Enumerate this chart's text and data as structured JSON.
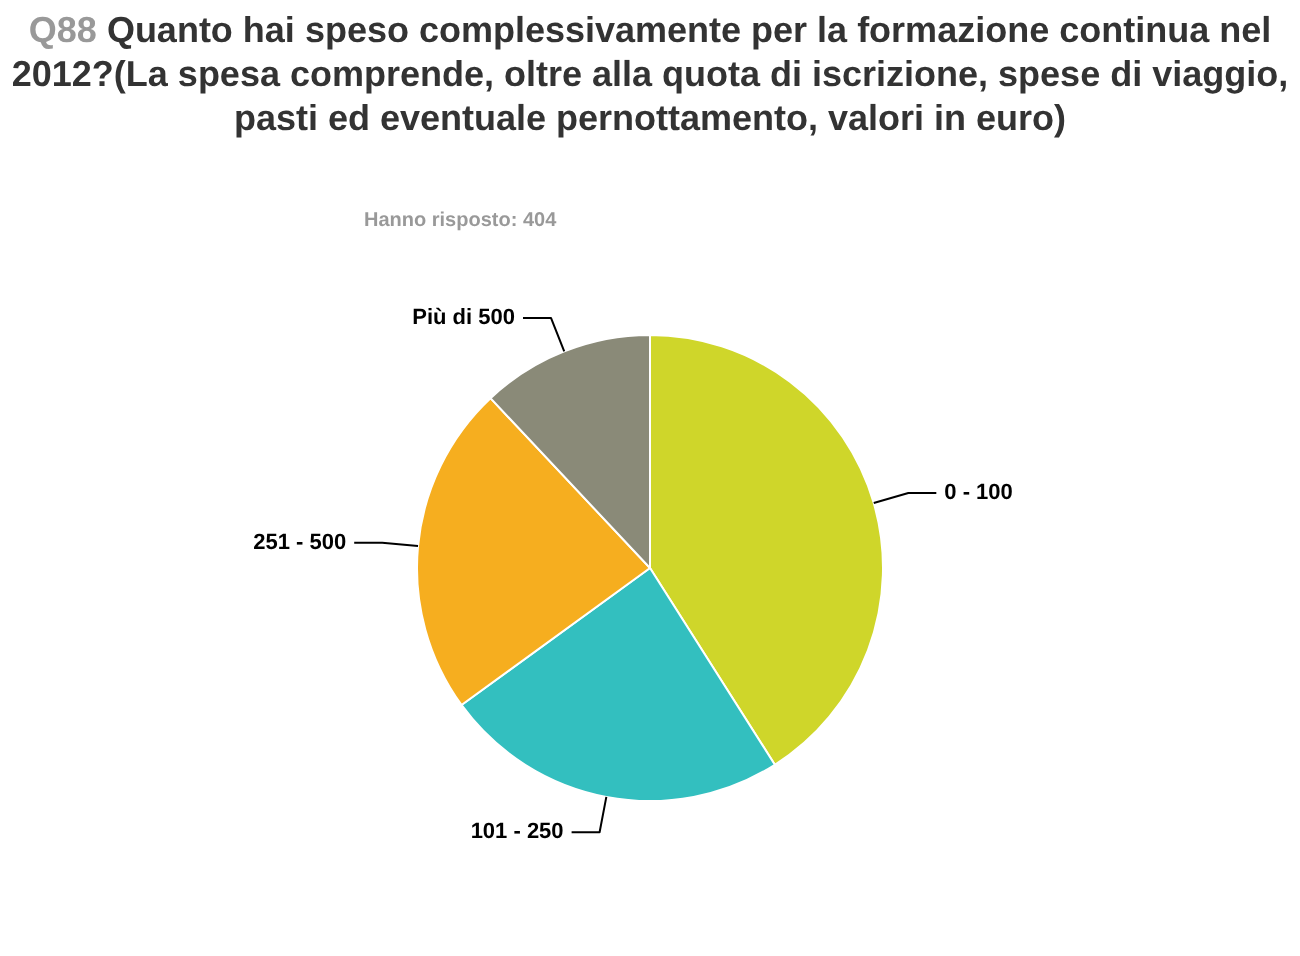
{
  "chart_data": {
    "type": "pie",
    "title": "Q88 Quanto hai speso complessivamente per la formazione continua nel 2012?(La spesa comprende, oltre alla quota di iscrizione, spese di viaggio, pasti ed eventuale pernottamento, valori in euro)",
    "subtitle": "Hanno risposto: 404",
    "categories": [
      "0 - 100",
      "101 - 250",
      "251 - 500",
      "Più di 500"
    ],
    "values": [
      41,
      24,
      23,
      12
    ],
    "colors": [
      "#cfd62a",
      "#33bfbf",
      "#f6ae1f",
      "#8a8a78"
    ]
  }
}
